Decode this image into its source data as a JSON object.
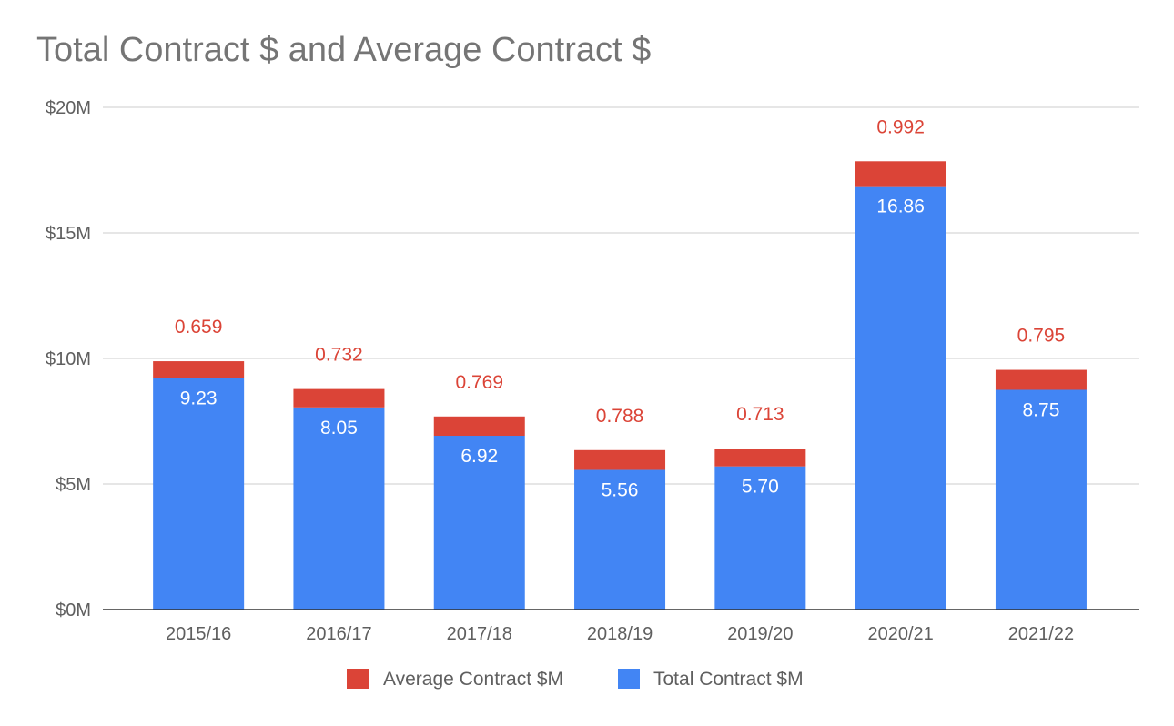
{
  "chart_data": {
    "type": "bar",
    "stacked": true,
    "title": "Total Contract $ and Average Contract $",
    "categories": [
      "2015/16",
      "2016/17",
      "2017/18",
      "2018/19",
      "2019/20",
      "2020/21",
      "2021/22"
    ],
    "series": [
      {
        "name": "Total Contract $M",
        "color": "#4285f4",
        "values": [
          9.23,
          8.05,
          6.92,
          5.56,
          5.7,
          16.86,
          8.75
        ],
        "labels": [
          "9.23",
          "8.05",
          "6.92",
          "5.56",
          "5.70",
          "16.86",
          "8.75"
        ]
      },
      {
        "name": "Average Contract $M",
        "color": "#db4437",
        "values": [
          0.659,
          0.732,
          0.769,
          0.788,
          0.713,
          0.992,
          0.795
        ],
        "labels": [
          "0.659",
          "0.732",
          "0.769",
          "0.788",
          "0.713",
          "0.992",
          "0.795"
        ]
      }
    ],
    "y_ticks": [
      0,
      5,
      10,
      15,
      20
    ],
    "y_tick_labels": [
      "$0M",
      "$5M",
      "$10M",
      "$15M",
      "$20M"
    ],
    "ylim": [
      0,
      20
    ],
    "xlabel": "",
    "ylabel": "",
    "grid": true,
    "legend": {
      "position": "bottom",
      "entries": [
        {
          "name": "Average Contract $M",
          "color": "#db4437"
        },
        {
          "name": "Total Contract $M",
          "color": "#4285f4"
        }
      ]
    }
  }
}
